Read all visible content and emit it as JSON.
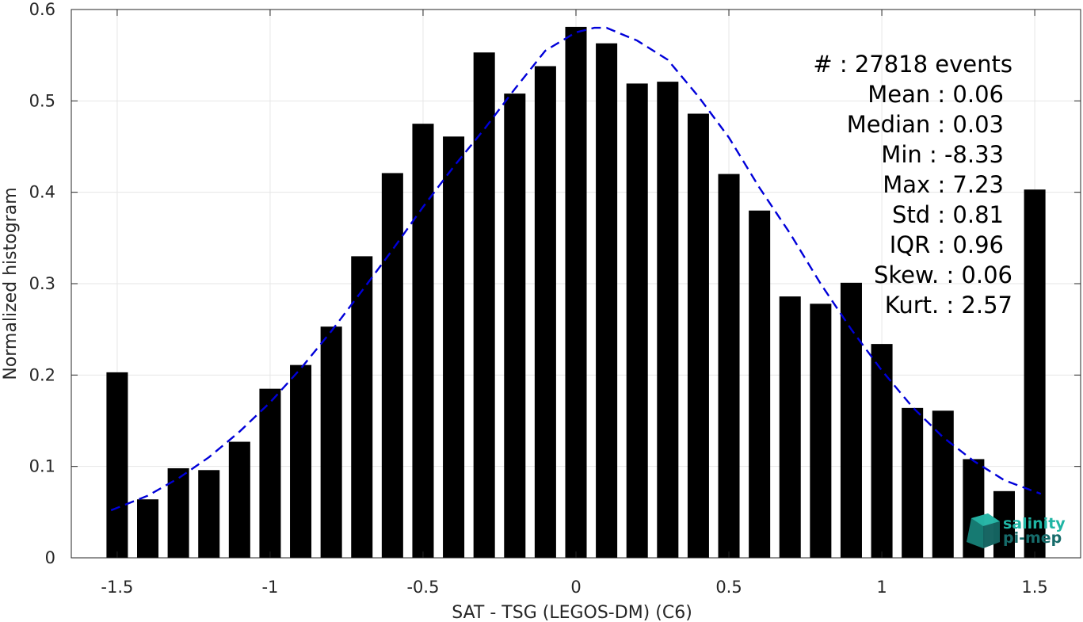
{
  "chart_data": {
    "type": "bar",
    "xlabel": "SAT - TSG (LEGOS-DM) (C6)",
    "ylabel": "Normalized histogram",
    "xlim": [
      -1.65,
      1.65
    ],
    "ylim": [
      0,
      0.6
    ],
    "xticks": [
      -1.5,
      -1,
      -0.5,
      0,
      0.5,
      1,
      1.5
    ],
    "xtick_labels": [
      "-1.5",
      "-1",
      "-0.5",
      "0",
      "0.5",
      "1",
      "1.5"
    ],
    "yticks": [
      0,
      0.1,
      0.2,
      0.3,
      0.4,
      0.5,
      0.6
    ],
    "ytick_labels": [
      "0",
      "0.1",
      "0.2",
      "0.3",
      "0.4",
      "0.5",
      "0.6"
    ],
    "grid": true,
    "bar_width": 0.07,
    "bar_color": "#000000",
    "x": [
      -1.5,
      -1.4,
      -1.3,
      -1.2,
      -1.1,
      -1.0,
      -0.9,
      -0.8,
      -0.7,
      -0.6,
      -0.5,
      -0.4,
      -0.3,
      -0.2,
      -0.1,
      0.0,
      0.1,
      0.2,
      0.3,
      0.4,
      0.5,
      0.6,
      0.7,
      0.8,
      0.9,
      1.0,
      1.1,
      1.2,
      1.3,
      1.4,
      1.5
    ],
    "values": [
      0.203,
      0.064,
      0.098,
      0.096,
      0.127,
      0.185,
      0.211,
      0.253,
      0.33,
      0.421,
      0.475,
      0.461,
      0.553,
      0.508,
      0.538,
      0.581,
      0.563,
      0.519,
      0.521,
      0.486,
      0.42,
      0.38,
      0.286,
      0.278,
      0.301,
      0.234,
      0.164,
      0.161,
      0.108,
      0.073,
      0.403
    ],
    "fit": {
      "style": "dashed",
      "color": "#0000d9",
      "x": [
        -1.52,
        -1.4,
        -1.3,
        -1.2,
        -1.1,
        -1.0,
        -0.9,
        -0.8,
        -0.7,
        -0.6,
        -0.5,
        -0.4,
        -0.3,
        -0.2,
        -0.1,
        0.0,
        0.06,
        0.1,
        0.2,
        0.3,
        0.4,
        0.5,
        0.6,
        0.7,
        0.8,
        0.9,
        1.0,
        1.1,
        1.2,
        1.3,
        1.4,
        1.52
      ],
      "y": [
        0.052,
        0.068,
        0.087,
        0.11,
        0.138,
        0.17,
        0.207,
        0.248,
        0.292,
        0.337,
        0.384,
        0.428,
        0.469,
        0.513,
        0.555,
        0.575,
        0.58,
        0.58,
        0.566,
        0.545,
        0.505,
        0.46,
        0.405,
        0.355,
        0.3,
        0.25,
        0.205,
        0.165,
        0.132,
        0.106,
        0.085,
        0.07
      ]
    }
  },
  "stats": [
    {
      "label": "#  : 27818 events"
    },
    {
      "label": "Mean : 0.06"
    },
    {
      "label": "Median : 0.03"
    },
    {
      "label": "Min : -8.33"
    },
    {
      "label": "Max : 7.23"
    },
    {
      "label": "Std : 0.81"
    },
    {
      "label": "IQR : 0.96"
    },
    {
      "label": "Skew. : 0.06"
    },
    {
      "label": "Kurt. : 2.57"
    }
  ],
  "logo": {
    "line1": "salinity",
    "line2": "pi-mep",
    "color1": "#1fb5a4",
    "color2": "#166b6a"
  }
}
